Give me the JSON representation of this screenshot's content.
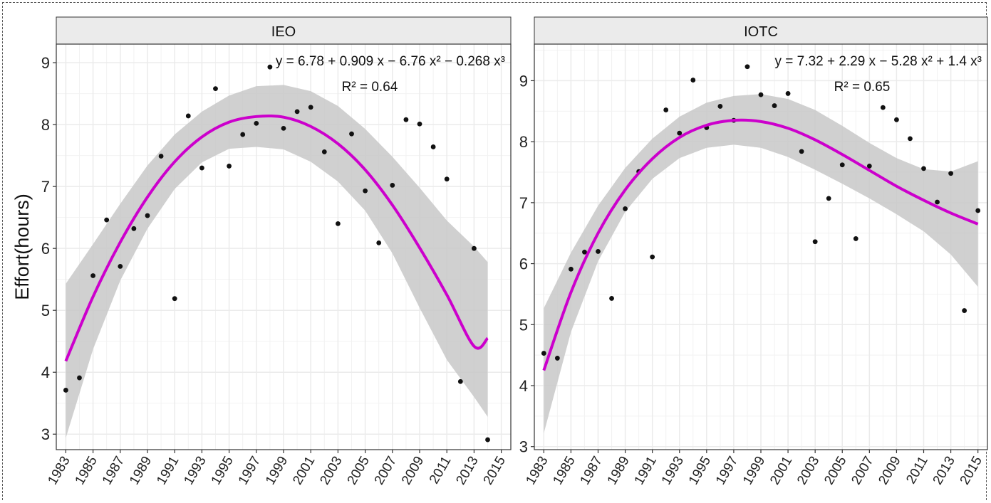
{
  "colors": {
    "fit_line": "#cc00cc",
    "ribbon": "#c8c8c8",
    "point": "#111111",
    "strip_bg": "#ebebeb",
    "grid": "#ebebeb"
  },
  "chart_data": {
    "type": "scatter",
    "ylabel": "Effort(hours)",
    "x_ticks": [
      1983,
      1985,
      1987,
      1989,
      1991,
      1993,
      1995,
      1997,
      1999,
      2001,
      2003,
      2005,
      2007,
      2009,
      2011,
      2013,
      2015
    ],
    "grid": true,
    "panels": [
      {
        "title": "IEO",
        "equation": "y = 6.78 + 0.909 x − 6.76 x² − 0.268 x³",
        "r2": "R² = 0.64",
        "xlim": [
          1982.3,
          2015.7
        ],
        "ylim": [
          2.75,
          9.3
        ],
        "y_ticks": [
          3,
          4,
          5,
          6,
          7,
          8,
          9
        ],
        "points": [
          [
            1983,
            3.71
          ],
          [
            1984,
            3.91
          ],
          [
            1985,
            5.56
          ],
          [
            1986,
            6.46
          ],
          [
            1987,
            5.71
          ],
          [
            1988,
            6.32
          ],
          [
            1989,
            6.53
          ],
          [
            1990,
            7.49
          ],
          [
            1991,
            5.19
          ],
          [
            1992,
            8.14
          ],
          [
            1993,
            7.3
          ],
          [
            1994,
            8.58
          ],
          [
            1995,
            7.33
          ],
          [
            1996,
            7.84
          ],
          [
            1997,
            8.02
          ],
          [
            1998,
            8.93
          ],
          [
            1999,
            7.94
          ],
          [
            2000,
            8.21
          ],
          [
            2001,
            8.28
          ],
          [
            2002,
            7.56
          ],
          [
            2003,
            6.4
          ],
          [
            2004,
            7.85
          ],
          [
            2005,
            6.93
          ],
          [
            2006,
            6.09
          ],
          [
            2007,
            7.02
          ],
          [
            2008,
            8.08
          ],
          [
            2009,
            8.01
          ],
          [
            2010,
            7.64
          ],
          [
            2011,
            7.12
          ],
          [
            2012,
            3.85
          ],
          [
            2013,
            6.0
          ],
          [
            2014,
            2.91
          ]
        ],
        "fit": [
          [
            1983,
            4.18
          ],
          [
            1985,
            5.22
          ],
          [
            1987,
            6.1
          ],
          [
            1989,
            6.83
          ],
          [
            1991,
            7.4
          ],
          [
            1993,
            7.8
          ],
          [
            1995,
            8.04
          ],
          [
            1997,
            8.13
          ],
          [
            1999,
            8.12
          ],
          [
            2001,
            7.97
          ],
          [
            2003,
            7.69
          ],
          [
            2005,
            7.27
          ],
          [
            2007,
            6.7
          ],
          [
            2009,
            6.01
          ],
          [
            2011,
            5.25
          ],
          [
            2013,
            4.42
          ],
          [
            2014,
            4.55
          ]
        ],
        "band_upper": [
          [
            1983,
            5.43
          ],
          [
            1985,
            6.07
          ],
          [
            1987,
            6.72
          ],
          [
            1989,
            7.34
          ],
          [
            1991,
            7.84
          ],
          [
            1993,
            8.21
          ],
          [
            1995,
            8.47
          ],
          [
            1997,
            8.62
          ],
          [
            1999,
            8.64
          ],
          [
            2001,
            8.54
          ],
          [
            2003,
            8.3
          ],
          [
            2005,
            7.93
          ],
          [
            2007,
            7.48
          ],
          [
            2009,
            6.98
          ],
          [
            2011,
            6.45
          ],
          [
            2013,
            6.03
          ],
          [
            2014,
            5.78
          ]
        ],
        "band_lower": [
          [
            1983,
            2.94
          ],
          [
            1985,
            4.37
          ],
          [
            1987,
            5.48
          ],
          [
            1989,
            6.32
          ],
          [
            1991,
            6.96
          ],
          [
            1993,
            7.39
          ],
          [
            1995,
            7.61
          ],
          [
            1997,
            7.64
          ],
          [
            1999,
            7.6
          ],
          [
            2001,
            7.4
          ],
          [
            2003,
            7.08
          ],
          [
            2005,
            6.61
          ],
          [
            2007,
            5.92
          ],
          [
            2009,
            5.04
          ],
          [
            2011,
            4.2
          ],
          [
            2013,
            3.6
          ],
          [
            2014,
            3.28
          ]
        ]
      },
      {
        "title": "IOTC",
        "equation": "y = 7.32 + 2.29 x − 5.28 x² + 1.4 x³",
        "r2": "R² = 0.65",
        "xlim": [
          1982.3,
          2015.7
        ],
        "ylim": [
          2.95,
          9.6
        ],
        "y_ticks": [
          3,
          4,
          5,
          6,
          7,
          8,
          9
        ],
        "points": [
          [
            1983,
            4.53
          ],
          [
            1984,
            4.45
          ],
          [
            1985,
            5.91
          ],
          [
            1986,
            6.19
          ],
          [
            1987,
            6.2
          ],
          [
            1988,
            5.43
          ],
          [
            1989,
            6.9
          ],
          [
            1990,
            7.51
          ],
          [
            1991,
            6.11
          ],
          [
            1992,
            8.52
          ],
          [
            1993,
            8.14
          ],
          [
            1994,
            9.01
          ],
          [
            1995,
            8.23
          ],
          [
            1996,
            8.58
          ],
          [
            1997,
            8.35
          ],
          [
            1998,
            9.23
          ],
          [
            1999,
            8.77
          ],
          [
            2000,
            8.59
          ],
          [
            2001,
            8.79
          ],
          [
            2002,
            7.84
          ],
          [
            2003,
            6.36
          ],
          [
            2004,
            7.07
          ],
          [
            2005,
            7.62
          ],
          [
            2006,
            6.41
          ],
          [
            2007,
            7.6
          ],
          [
            2008,
            8.56
          ],
          [
            2009,
            8.36
          ],
          [
            2010,
            8.05
          ],
          [
            2011,
            7.56
          ],
          [
            2012,
            7.01
          ],
          [
            2013,
            7.48
          ],
          [
            2014,
            5.23
          ],
          [
            2015,
            6.87
          ]
        ],
        "fit": [
          [
            1983,
            4.25
          ],
          [
            1985,
            5.53
          ],
          [
            1987,
            6.5
          ],
          [
            1989,
            7.21
          ],
          [
            1991,
            7.72
          ],
          [
            1993,
            8.07
          ],
          [
            1995,
            8.27
          ],
          [
            1997,
            8.35
          ],
          [
            1999,
            8.33
          ],
          [
            2001,
            8.22
          ],
          [
            2003,
            8.03
          ],
          [
            2005,
            7.79
          ],
          [
            2007,
            7.53
          ],
          [
            2009,
            7.27
          ],
          [
            2011,
            7.04
          ],
          [
            2013,
            6.83
          ],
          [
            2015,
            6.65
          ]
        ],
        "band_upper": [
          [
            1983,
            5.27
          ],
          [
            1985,
            6.18
          ],
          [
            1987,
            6.95
          ],
          [
            1989,
            7.57
          ],
          [
            1991,
            8.05
          ],
          [
            1993,
            8.41
          ],
          [
            1995,
            8.64
          ],
          [
            1997,
            8.75
          ],
          [
            1999,
            8.78
          ],
          [
            2001,
            8.7
          ],
          [
            2003,
            8.52
          ],
          [
            2005,
            8.26
          ],
          [
            2007,
            7.98
          ],
          [
            2009,
            7.73
          ],
          [
            2011,
            7.55
          ],
          [
            2013,
            7.51
          ],
          [
            2015,
            7.68
          ]
        ],
        "band_lower": [
          [
            1983,
            3.22
          ],
          [
            1985,
            4.88
          ],
          [
            1987,
            6.04
          ],
          [
            1989,
            6.85
          ],
          [
            1991,
            7.39
          ],
          [
            1993,
            7.73
          ],
          [
            1995,
            7.9
          ],
          [
            1997,
            7.95
          ],
          [
            1999,
            7.9
          ],
          [
            2001,
            7.75
          ],
          [
            2003,
            7.54
          ],
          [
            2005,
            7.31
          ],
          [
            2007,
            7.07
          ],
          [
            2009,
            6.81
          ],
          [
            2011,
            6.53
          ],
          [
            2013,
            6.15
          ],
          [
            2015,
            5.62
          ]
        ]
      }
    ]
  }
}
